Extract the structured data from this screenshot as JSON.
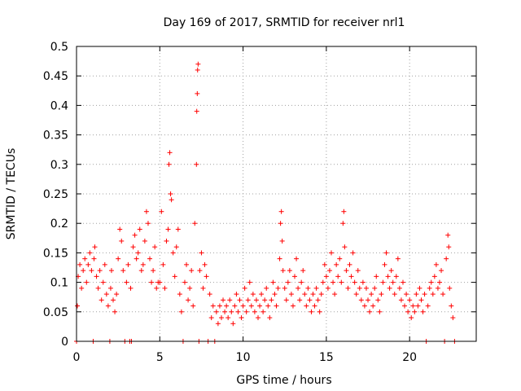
{
  "chart_data": {
    "type": "scatter",
    "title": "Day 169 of 2017, SRMTID for receiver nrl1",
    "xlabel": "GPS time / hours",
    "ylabel": "SRMTID / TECUs",
    "xlim": [
      0,
      24
    ],
    "ylim": [
      0,
      0.5
    ],
    "xticks": [
      0,
      5,
      10,
      15,
      20
    ],
    "xtick_labels": [
      "0",
      "5",
      "10",
      "15",
      "20"
    ],
    "yticks": [
      0,
      0.05,
      0.1,
      0.15,
      0.2,
      0.25,
      0.3,
      0.35,
      0.4,
      0.45,
      0.5
    ],
    "ytick_labels": [
      "0",
      "0.05",
      "0.1",
      "0.15",
      "0.2",
      "0.25",
      "0.3",
      "0.35",
      "0.4",
      "0.45",
      "0.5"
    ],
    "grid": true,
    "marker": "plus",
    "color": "#ff0000",
    "series": [
      {
        "name": "SRMTID",
        "points": [
          [
            0.0,
            0.0
          ],
          [
            0.05,
            0.06
          ],
          [
            0.1,
            0.11
          ],
          [
            0.2,
            0.13
          ],
          [
            0.3,
            0.09
          ],
          [
            0.4,
            0.12
          ],
          [
            0.5,
            0.14
          ],
          [
            0.6,
            0.1
          ],
          [
            0.7,
            0.13
          ],
          [
            0.8,
            0.15
          ],
          [
            0.9,
            0.12
          ],
          [
            1.0,
            0.0
          ],
          [
            1.05,
            0.14
          ],
          [
            1.1,
            0.16
          ],
          [
            1.2,
            0.11
          ],
          [
            1.3,
            0.09
          ],
          [
            1.4,
            0.12
          ],
          [
            1.5,
            0.07
          ],
          [
            1.6,
            0.1
          ],
          [
            1.7,
            0.13
          ],
          [
            1.8,
            0.08
          ],
          [
            1.9,
            0.06
          ],
          [
            2.0,
            0.0
          ],
          [
            2.05,
            0.09
          ],
          [
            2.1,
            0.12
          ],
          [
            2.2,
            0.07
          ],
          [
            2.3,
            0.05
          ],
          [
            2.4,
            0.08
          ],
          [
            2.5,
            0.14
          ],
          [
            2.6,
            0.19
          ],
          [
            2.7,
            0.17
          ],
          [
            2.8,
            0.12
          ],
          [
            2.9,
            0.0
          ],
          [
            3.0,
            0.1
          ],
          [
            3.1,
            0.13
          ],
          [
            3.2,
            0.0
          ],
          [
            3.25,
            0.09
          ],
          [
            3.3,
            0.0
          ],
          [
            3.4,
            0.16
          ],
          [
            3.5,
            0.18
          ],
          [
            3.6,
            0.14
          ],
          [
            3.7,
            0.15
          ],
          [
            3.8,
            0.19
          ],
          [
            3.9,
            0.12
          ],
          [
            4.0,
            0.13
          ],
          [
            4.1,
            0.17
          ],
          [
            4.2,
            0.22
          ],
          [
            4.3,
            0.2
          ],
          [
            4.4,
            0.14
          ],
          [
            4.5,
            0.1
          ],
          [
            4.6,
            0.12
          ],
          [
            4.7,
            0.16
          ],
          [
            4.8,
            0.09
          ],
          [
            4.9,
            0.1
          ],
          [
            5.0,
            0.1
          ],
          [
            5.1,
            0.22
          ],
          [
            5.2,
            0.13
          ],
          [
            5.3,
            0.09
          ],
          [
            5.4,
            0.17
          ],
          [
            5.5,
            0.19
          ],
          [
            5.55,
            0.3
          ],
          [
            5.6,
            0.32
          ],
          [
            5.65,
            0.25
          ],
          [
            5.7,
            0.24
          ],
          [
            5.8,
            0.15
          ],
          [
            5.9,
            0.11
          ],
          [
            6.0,
            0.16
          ],
          [
            6.1,
            0.19
          ],
          [
            6.2,
            0.08
          ],
          [
            6.3,
            0.05
          ],
          [
            6.4,
            0.0
          ],
          [
            6.5,
            0.1
          ],
          [
            6.6,
            0.13
          ],
          [
            6.7,
            0.07
          ],
          [
            6.8,
            0.09
          ],
          [
            6.9,
            0.12
          ],
          [
            7.0,
            0.06
          ],
          [
            7.1,
            0.2
          ],
          [
            7.2,
            0.3
          ],
          [
            7.22,
            0.39
          ],
          [
            7.25,
            0.42
          ],
          [
            7.27,
            0.46
          ],
          [
            7.3,
            0.47
          ],
          [
            7.35,
            0.0
          ],
          [
            7.4,
            0.12
          ],
          [
            7.5,
            0.15
          ],
          [
            7.6,
            0.09
          ],
          [
            7.7,
            0.13
          ],
          [
            7.8,
            0.11
          ],
          [
            7.9,
            0.0
          ],
          [
            8.0,
            0.08
          ],
          [
            8.1,
            0.04
          ],
          [
            8.2,
            0.06
          ],
          [
            8.3,
            0.0
          ],
          [
            8.4,
            0.05
          ],
          [
            8.5,
            0.03
          ],
          [
            8.6,
            0.06
          ],
          [
            8.7,
            0.04
          ],
          [
            8.8,
            0.07
          ],
          [
            8.9,
            0.05
          ],
          [
            9.0,
            0.06
          ],
          [
            9.1,
            0.04
          ],
          [
            9.2,
            0.07
          ],
          [
            9.3,
            0.05
          ],
          [
            9.4,
            0.03
          ],
          [
            9.5,
            0.06
          ],
          [
            9.6,
            0.08
          ],
          [
            9.7,
            0.05
          ],
          [
            9.8,
            0.07
          ],
          [
            9.9,
            0.04
          ],
          [
            10.0,
            0.06
          ],
          [
            10.1,
            0.09
          ],
          [
            10.2,
            0.05
          ],
          [
            10.3,
            0.07
          ],
          [
            10.4,
            0.1
          ],
          [
            10.5,
            0.06
          ],
          [
            10.6,
            0.08
          ],
          [
            10.7,
            0.05
          ],
          [
            10.8,
            0.07
          ],
          [
            10.9,
            0.04
          ],
          [
            11.0,
            0.06
          ],
          [
            11.1,
            0.08
          ],
          [
            11.2,
            0.05
          ],
          [
            11.3,
            0.07
          ],
          [
            11.4,
            0.09
          ],
          [
            11.5,
            0.06
          ],
          [
            11.6,
            0.04
          ],
          [
            11.7,
            0.07
          ],
          [
            11.8,
            0.1
          ],
          [
            11.9,
            0.08
          ],
          [
            12.0,
            0.06
          ],
          [
            12.1,
            0.09
          ],
          [
            12.2,
            0.14
          ],
          [
            12.25,
            0.2
          ],
          [
            12.3,
            0.22
          ],
          [
            12.35,
            0.17
          ],
          [
            12.4,
            0.12
          ],
          [
            12.5,
            0.09
          ],
          [
            12.6,
            0.07
          ],
          [
            12.7,
            0.1
          ],
          [
            12.8,
            0.12
          ],
          [
            12.9,
            0.08
          ],
          [
            13.0,
            0.06
          ],
          [
            13.1,
            0.11
          ],
          [
            13.2,
            0.14
          ],
          [
            13.3,
            0.09
          ],
          [
            13.4,
            0.07
          ],
          [
            13.5,
            0.1
          ],
          [
            13.6,
            0.12
          ],
          [
            13.7,
            0.08
          ],
          [
            13.8,
            0.06
          ],
          [
            13.9,
            0.09
          ],
          [
            14.0,
            0.07
          ],
          [
            14.1,
            0.05
          ],
          [
            14.2,
            0.08
          ],
          [
            14.3,
            0.06
          ],
          [
            14.4,
            0.09
          ],
          [
            14.5,
            0.07
          ],
          [
            14.6,
            0.05
          ],
          [
            14.7,
            0.08
          ],
          [
            14.8,
            0.1
          ],
          [
            14.9,
            0.13
          ],
          [
            15.0,
            0.11
          ],
          [
            15.1,
            0.09
          ],
          [
            15.2,
            0.12
          ],
          [
            15.3,
            0.15
          ],
          [
            15.4,
            0.1
          ],
          [
            15.5,
            0.08
          ],
          [
            15.6,
            0.13
          ],
          [
            15.7,
            0.11
          ],
          [
            15.8,
            0.14
          ],
          [
            15.9,
            0.1
          ],
          [
            16.0,
            0.2
          ],
          [
            16.05,
            0.22
          ],
          [
            16.1,
            0.16
          ],
          [
            16.2,
            0.12
          ],
          [
            16.3,
            0.09
          ],
          [
            16.4,
            0.13
          ],
          [
            16.5,
            0.11
          ],
          [
            16.6,
            0.15
          ],
          [
            16.7,
            0.1
          ],
          [
            16.8,
            0.08
          ],
          [
            16.9,
            0.12
          ],
          [
            17.0,
            0.09
          ],
          [
            17.1,
            0.07
          ],
          [
            17.2,
            0.1
          ],
          [
            17.3,
            0.06
          ],
          [
            17.4,
            0.09
          ],
          [
            17.5,
            0.07
          ],
          [
            17.6,
            0.05
          ],
          [
            17.7,
            0.08
          ],
          [
            17.8,
            0.06
          ],
          [
            17.9,
            0.09
          ],
          [
            18.0,
            0.11
          ],
          [
            18.1,
            0.07
          ],
          [
            18.2,
            0.05
          ],
          [
            18.3,
            0.08
          ],
          [
            18.4,
            0.1
          ],
          [
            18.5,
            0.13
          ],
          [
            18.6,
            0.15
          ],
          [
            18.7,
            0.11
          ],
          [
            18.8,
            0.09
          ],
          [
            18.9,
            0.12
          ],
          [
            19.0,
            0.1
          ],
          [
            19.1,
            0.08
          ],
          [
            19.2,
            0.11
          ],
          [
            19.3,
            0.14
          ],
          [
            19.4,
            0.09
          ],
          [
            19.5,
            0.07
          ],
          [
            19.6,
            0.1
          ],
          [
            19.7,
            0.06
          ],
          [
            19.8,
            0.08
          ],
          [
            19.9,
            0.05
          ],
          [
            20.0,
            0.07
          ],
          [
            20.1,
            0.04
          ],
          [
            20.2,
            0.06
          ],
          [
            20.3,
            0.05
          ],
          [
            20.4,
            0.08
          ],
          [
            20.5,
            0.06
          ],
          [
            20.6,
            0.09
          ],
          [
            20.7,
            0.07
          ],
          [
            20.8,
            0.05
          ],
          [
            20.9,
            0.08
          ],
          [
            21.0,
            0.0
          ],
          [
            21.1,
            0.06
          ],
          [
            21.2,
            0.09
          ],
          [
            21.3,
            0.1
          ],
          [
            21.4,
            0.08
          ],
          [
            21.5,
            0.11
          ],
          [
            21.6,
            0.13
          ],
          [
            21.7,
            0.09
          ],
          [
            21.8,
            0.1
          ],
          [
            21.9,
            0.12
          ],
          [
            22.0,
            0.08
          ],
          [
            22.1,
            0.0
          ],
          [
            22.2,
            0.14
          ],
          [
            22.3,
            0.18
          ],
          [
            22.35,
            0.16
          ],
          [
            22.4,
            0.09
          ],
          [
            22.5,
            0.06
          ],
          [
            22.6,
            0.04
          ],
          [
            22.7,
            0.0
          ]
        ]
      }
    ]
  }
}
